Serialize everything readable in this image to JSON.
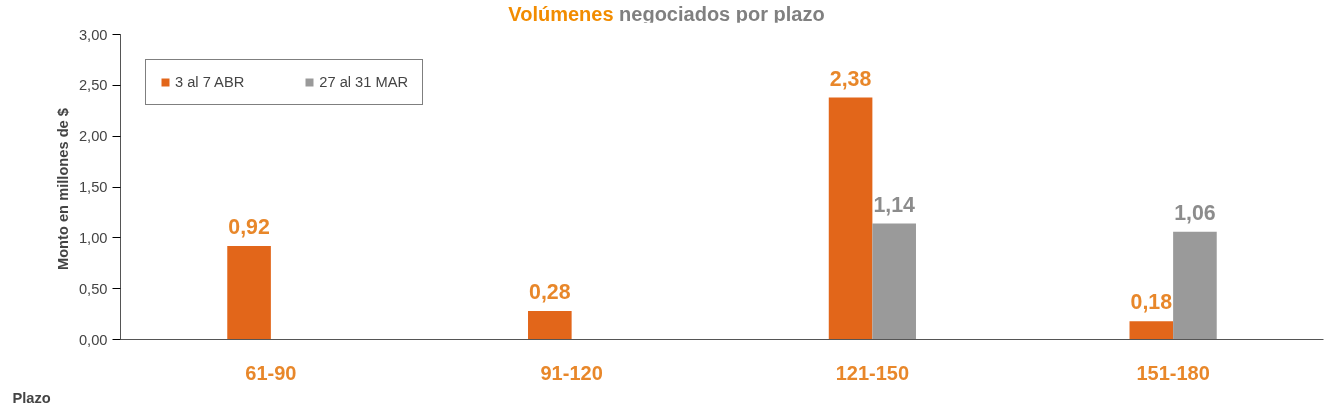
{
  "chart_data": {
    "type": "bar",
    "title": "Volúmenes negociados por plazo",
    "xlabel": "Plazo",
    "ylabel": "Monto en  millones de $",
    "categories": [
      "61-90",
      "91-120",
      "121-150",
      "151-180"
    ],
    "series": [
      {
        "name": "3 al 7 ABR",
        "color": "#e2661a",
        "values": [
          0.92,
          0.28,
          2.38,
          0.18
        ],
        "value_labels": [
          "0,92",
          "0,28",
          "2,38",
          "0,18"
        ]
      },
      {
        "name": "27 al 31 MAR",
        "color": "#9a9a9a",
        "values": [
          null,
          null,
          1.14,
          1.06
        ],
        "value_labels": [
          null,
          null,
          "1,14",
          "1,06"
        ]
      }
    ],
    "ylim": [
      0,
      3
    ],
    "yticks": [
      {
        "value": 0,
        "label": "0,00"
      },
      {
        "value": 0.5,
        "label": "0,50"
      },
      {
        "value": 1,
        "label": "1,00"
      },
      {
        "value": 1.5,
        "label": "1,50"
      },
      {
        "value": 2,
        "label": "2,00"
      },
      {
        "value": 2.5,
        "label": "2,50"
      },
      {
        "value": 3,
        "label": "3,00"
      }
    ],
    "grid": false,
    "legend": "top left"
  }
}
